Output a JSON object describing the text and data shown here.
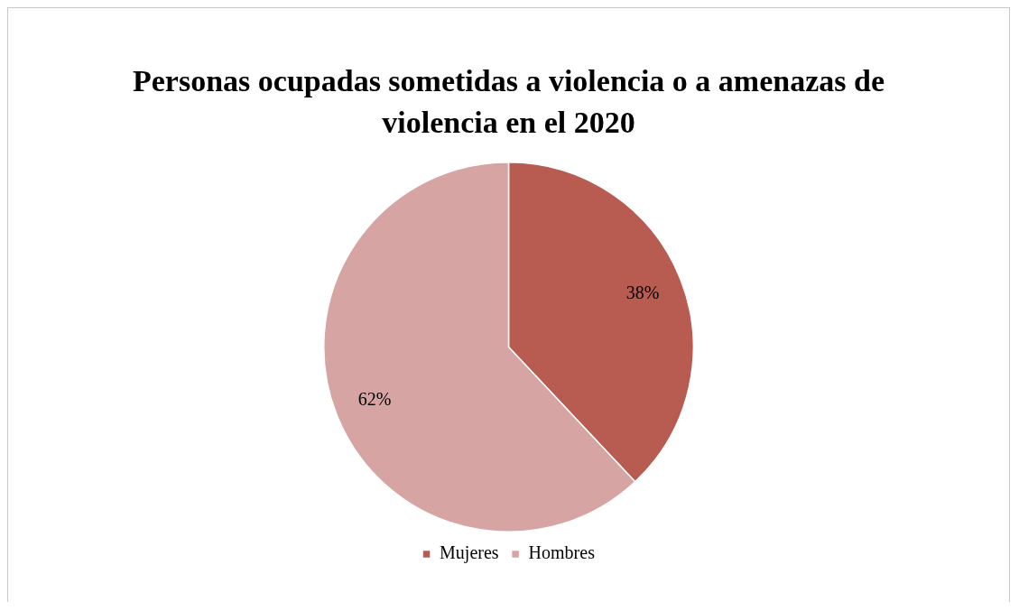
{
  "chart_data": {
    "type": "pie",
    "title": "Personas ocupadas sometidas a violencia o a amenazas de violencia en el 2020",
    "categories": [
      "Mujeres",
      "Hombres"
    ],
    "values": [
      38,
      62
    ],
    "colors": [
      "#b85b51",
      "#d6a4a3"
    ],
    "value_labels": [
      "38%",
      "62%"
    ],
    "legend": "bottom"
  }
}
